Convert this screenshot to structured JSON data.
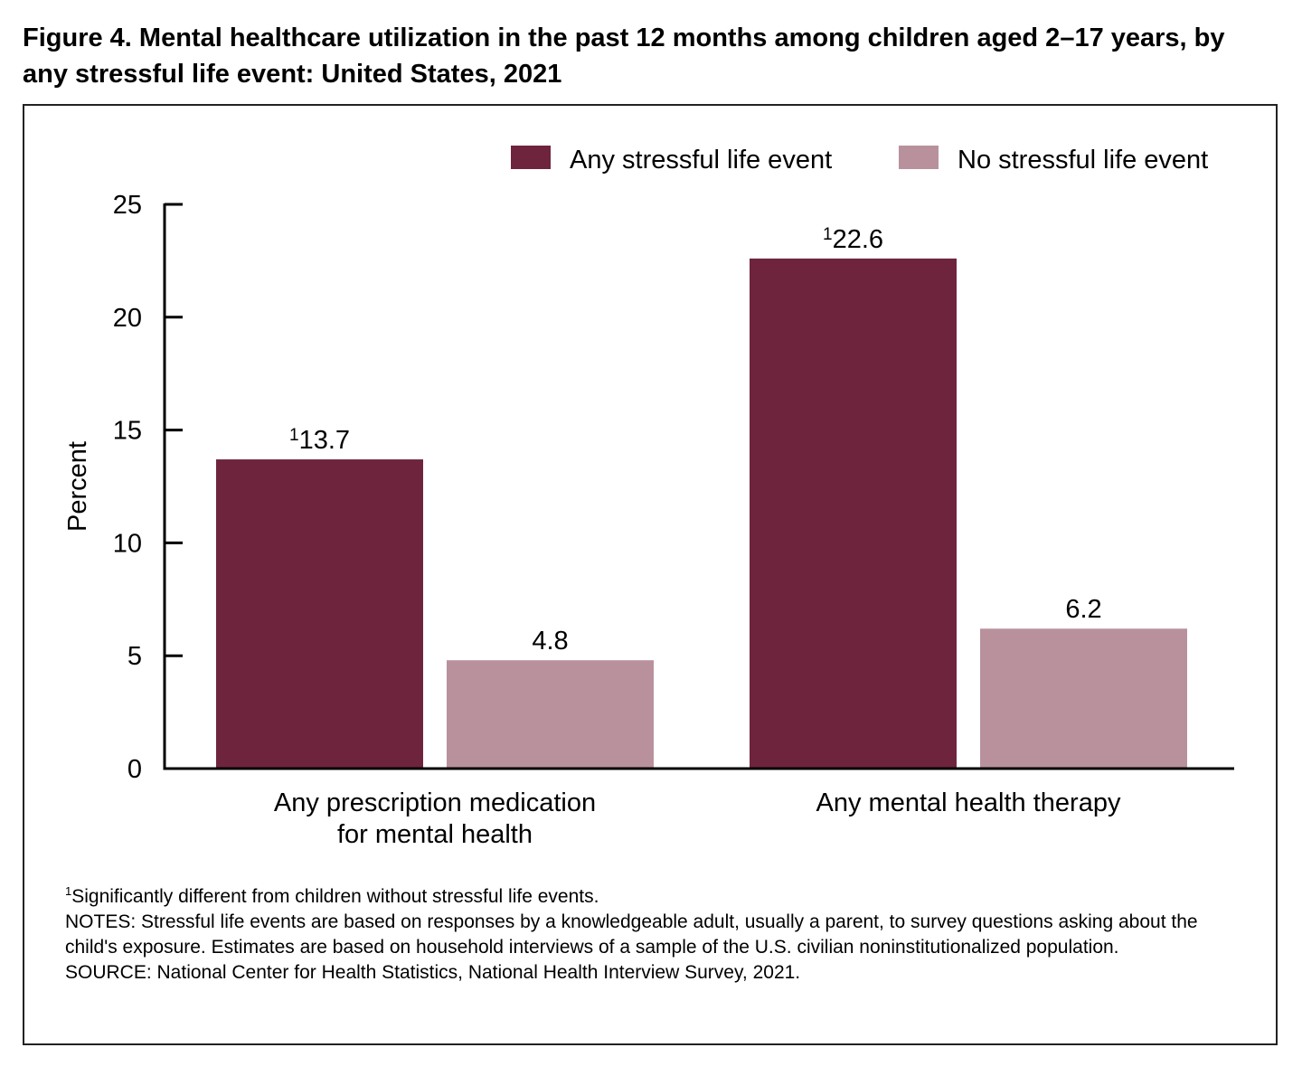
{
  "figure": {
    "title": "Figure 4. Mental healthcare utilization in the past 12 months among children aged 2–17 years, by any stressful life event: United States, 2021"
  },
  "chart_data": {
    "type": "bar",
    "title": "Figure 4. Mental healthcare utilization in the past 12 months among children aged 2–17 years, by any stressful life event: United States, 2021",
    "xlabel": "",
    "ylabel": "Percent",
    "ylim": [
      0,
      25
    ],
    "yticks": [
      0,
      5,
      10,
      15,
      20,
      25
    ],
    "grid": false,
    "legend_position": "top-right",
    "categories": [
      [
        "Any prescription medication",
        "for mental health"
      ],
      [
        "Any mental health therapy"
      ]
    ],
    "series": [
      {
        "name": "Any stressful life event",
        "color": "#6F243E",
        "values": [
          13.7,
          22.6
        ],
        "labels": [
          "13.7",
          "22.6"
        ],
        "footnote_markers": [
          "1",
          "1"
        ]
      },
      {
        "name": "No stressful life event",
        "color": "#B8919C",
        "values": [
          4.8,
          6.2
        ],
        "labels": [
          "4.8",
          "6.2"
        ],
        "footnote_markers": [
          "",
          ""
        ]
      }
    ]
  },
  "notes": {
    "footnote_marker": "1",
    "footnote": "Significantly different from children without stressful life events.",
    "notes_line": "NOTES: Stressful life events are based on responses by a knowledgeable adult, usually a parent, to survey questions asking about the child's exposure. Estimates are based on household interviews of a sample of the U.S. civilian noninstitutionalized population.",
    "source": "SOURCE: National Center for Health Statistics, National Health Interview Survey, 2021."
  }
}
